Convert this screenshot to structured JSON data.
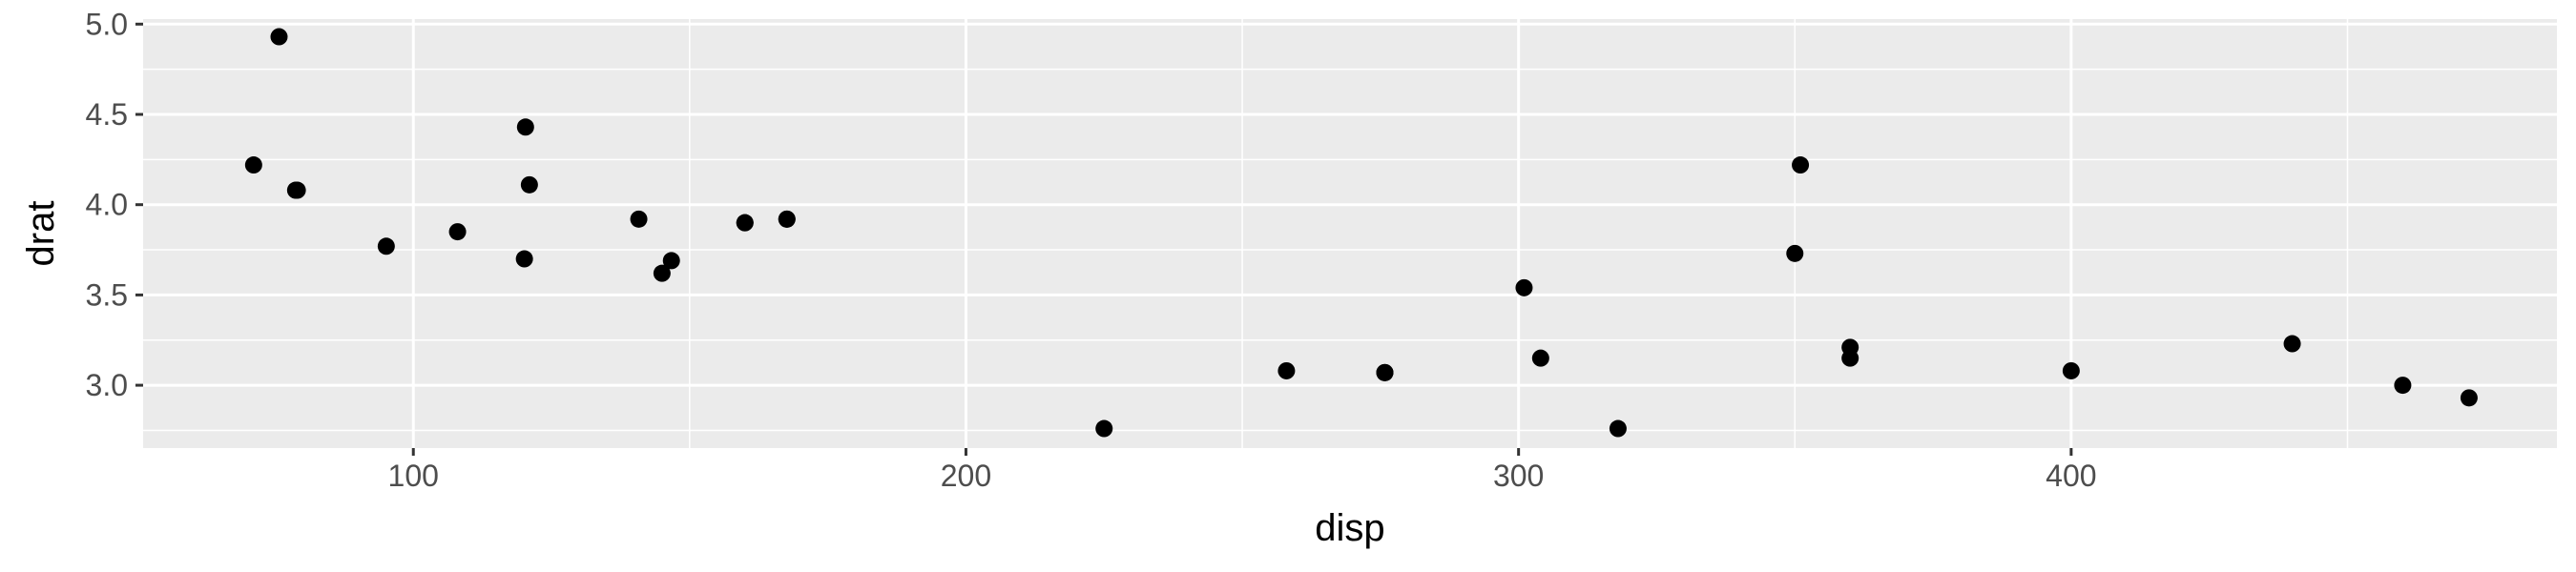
{
  "chart_data": {
    "type": "scatter",
    "xlabel": "disp",
    "ylabel": "drat",
    "xlim": [
      51.1,
      487.9
    ],
    "ylim": [
      2.652,
      5.028
    ],
    "x_ticks": [
      100,
      200,
      300,
      400
    ],
    "x_tick_labels": [
      "100",
      "200",
      "300",
      "400"
    ],
    "y_ticks": [
      3.0,
      3.5,
      4.0,
      4.5,
      5.0
    ],
    "y_tick_labels": [
      "3.0",
      "3.5",
      "4.0",
      "4.5",
      "5.0"
    ],
    "x_minor_ticks": [
      50,
      150,
      250,
      350,
      450
    ],
    "y_minor_ticks": [
      2.75,
      3.25,
      3.75,
      4.25,
      4.75
    ],
    "grid": true,
    "colors": {
      "panel": "#EBEBEB",
      "grid": "#FFFFFF",
      "point": "#000000",
      "tick_text": "#4D4D4D",
      "tick_mark": "#333333"
    },
    "points": [
      {
        "x": 160,
        "y": 3.9
      },
      {
        "x": 160,
        "y": 3.9
      },
      {
        "x": 108,
        "y": 3.85
      },
      {
        "x": 258,
        "y": 3.08
      },
      {
        "x": 360,
        "y": 3.15
      },
      {
        "x": 225,
        "y": 2.76
      },
      {
        "x": 360,
        "y": 3.21
      },
      {
        "x": 146.7,
        "y": 3.69
      },
      {
        "x": 140.8,
        "y": 3.92
      },
      {
        "x": 167.6,
        "y": 3.92
      },
      {
        "x": 167.6,
        "y": 3.92
      },
      {
        "x": 275.8,
        "y": 3.07
      },
      {
        "x": 275.8,
        "y": 3.07
      },
      {
        "x": 275.8,
        "y": 3.07
      },
      {
        "x": 472,
        "y": 2.93
      },
      {
        "x": 460,
        "y": 3.0
      },
      {
        "x": 440,
        "y": 3.23
      },
      {
        "x": 78.7,
        "y": 4.08
      },
      {
        "x": 75.7,
        "y": 4.93
      },
      {
        "x": 71.1,
        "y": 4.22
      },
      {
        "x": 120.1,
        "y": 3.7
      },
      {
        "x": 318,
        "y": 2.76
      },
      {
        "x": 304,
        "y": 3.15
      },
      {
        "x": 350,
        "y": 3.73
      },
      {
        "x": 400,
        "y": 3.08
      },
      {
        "x": 79,
        "y": 4.08
      },
      {
        "x": 120.3,
        "y": 4.43
      },
      {
        "x": 95.1,
        "y": 3.77
      },
      {
        "x": 351,
        "y": 4.22
      },
      {
        "x": 145,
        "y": 3.62
      },
      {
        "x": 301,
        "y": 3.54
      },
      {
        "x": 121,
        "y": 4.11
      }
    ]
  }
}
